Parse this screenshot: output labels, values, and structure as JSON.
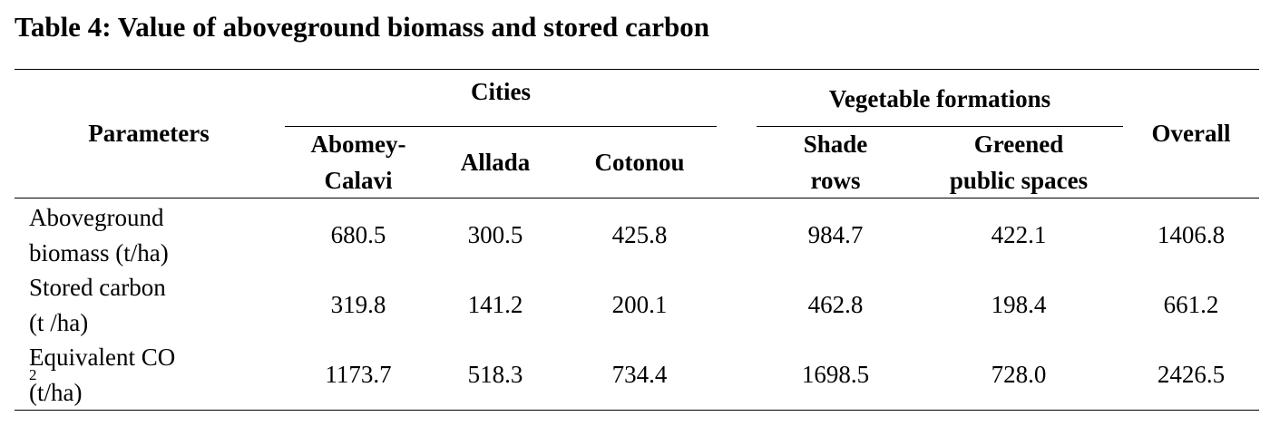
{
  "title": "Table 4: Value of aboveground biomass and stored carbon",
  "header": {
    "parameters": "Parameters",
    "cities": "Cities",
    "vegetable_formations": "Vegetable formations",
    "overall": "Overall",
    "columns": {
      "abomey_l1": "Abomey-",
      "abomey_l2": "Calavi",
      "allada": "Allada",
      "cotonou": "Cotonou",
      "shade_l1": "Shade",
      "shade_l2": "rows",
      "greened_l1": "Greened",
      "greened_l2": "public spaces"
    }
  },
  "rows": [
    {
      "param_l1": "Aboveground",
      "param_l2": "biomass (t/ha)",
      "abomey": "680.5",
      "allada": "300.5",
      "cotonou": "425.8",
      "shade": "984.7",
      "greened": "422.1",
      "overall": "1406.8"
    },
    {
      "param_l1": "Stored carbon",
      "param_l2": "(t /ha)",
      "abomey": "319.8",
      "allada": "141.2",
      "cotonou": "200.1",
      "shade": "462.8",
      "greened": "198.4",
      "overall": "661.2"
    },
    {
      "param_l1_main": "Equivalent CO",
      "param_l1_sub": "2",
      "param_l2": "(t/ha)",
      "abomey": "1173.7",
      "allada": "518.3",
      "cotonou": "734.4",
      "shade": "1698.5",
      "greened": "728.0",
      "overall": "2426.5"
    }
  ]
}
